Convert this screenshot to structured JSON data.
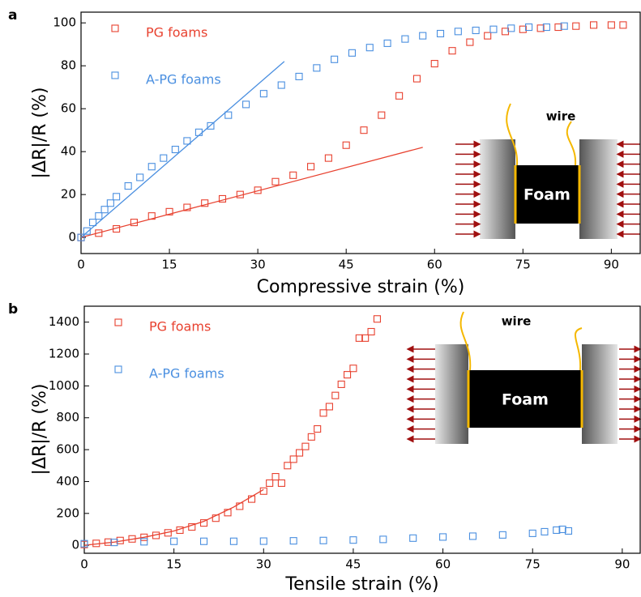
{
  "chart_data": [
    {
      "type": "scatter",
      "panel_label": "a",
      "xlabel": "Compressive strain (%)",
      "ylabel": "|ΔR|/R (%)",
      "xlim": [
        0,
        94.9
      ],
      "ylim": [
        -7.5,
        105
      ],
      "xticks": [
        0,
        15,
        30,
        45,
        60,
        75,
        90
      ],
      "yticks": [
        0,
        20,
        40,
        60,
        80,
        100
      ],
      "series": [
        {
          "name": "PG foams",
          "color": "#e8412f",
          "x": [
            0,
            3,
            6,
            9,
            12,
            15,
            18,
            21,
            24,
            27,
            30,
            33,
            36,
            39,
            42,
            45,
            48,
            51,
            54,
            57,
            60,
            63,
            66,
            69,
            72,
            75,
            78,
            81,
            84,
            87,
            90,
            92
          ],
          "values": [
            0,
            2,
            4,
            7,
            10,
            12,
            14,
            16,
            18,
            20,
            22,
            26,
            29,
            33,
            37,
            43,
            50,
            57,
            66,
            74,
            81,
            87,
            91,
            94,
            96,
            97,
            97.5,
            98,
            98.5,
            99,
            99,
            99
          ]
        },
        {
          "name": "A-PG foams",
          "color": "#4a8fe0",
          "x": [
            0,
            1,
            2,
            3,
            4,
            5,
            6,
            8,
            10,
            12,
            14,
            16,
            18,
            20,
            22,
            25,
            28,
            31,
            34,
            37,
            40,
            43,
            46,
            49,
            52,
            55,
            58,
            61,
            64,
            67,
            70,
            73,
            76,
            79,
            82
          ],
          "values": [
            0,
            3,
            7,
            10,
            13,
            16,
            19,
            24,
            28,
            33,
            37,
            41,
            45,
            49,
            52,
            57,
            62,
            67,
            71,
            75,
            79,
            83,
            86,
            88.5,
            90.5,
            92.5,
            94,
            95,
            96,
            96.5,
            97,
            97.5,
            98,
            98,
            98.5
          ]
        }
      ],
      "fit_lines": [
        {
          "color": "#e8412f",
          "x": [
            0,
            58
          ],
          "values": [
            0,
            42
          ]
        },
        {
          "color": "#4a8fe0",
          "x": [
            0,
            34.5
          ],
          "values": [
            0,
            82
          ]
        }
      ],
      "inset": {
        "wire": "wire",
        "foam": "Foam"
      }
    },
    {
      "type": "scatter",
      "panel_label": "b",
      "xlabel": "Tensile strain (%)",
      "ylabel": "|ΔR|/R (%)",
      "xlim": [
        0,
        93
      ],
      "ylim": [
        -50,
        1500
      ],
      "xticks": [
        0,
        15,
        30,
        45,
        60,
        75,
        90
      ],
      "yticks": [
        0,
        200,
        400,
        600,
        800,
        1000,
        1200,
        1400
      ],
      "series": [
        {
          "name": "PG foams",
          "color": "#e8412f",
          "x": [
            0,
            2,
            4,
            6,
            8,
            10,
            12,
            14,
            16,
            18,
            20,
            22,
            24,
            26,
            28,
            30,
            31,
            32,
            33,
            34,
            35,
            36,
            37,
            38,
            39,
            40,
            41,
            42,
            43,
            44,
            45,
            46,
            47,
            48,
            49
          ],
          "values": [
            5,
            12,
            20,
            30,
            40,
            50,
            62,
            78,
            95,
            115,
            140,
            170,
            205,
            245,
            290,
            340,
            390,
            430,
            390,
            500,
            540,
            580,
            620,
            680,
            730,
            830,
            870,
            940,
            1010,
            1070,
            1110,
            1300,
            1300,
            1340,
            1420
          ]
        },
        {
          "name": "A-PG foams",
          "color": "#4a8fe0",
          "x": [
            0,
            5,
            10,
            15,
            20,
            25,
            30,
            35,
            40,
            45,
            50,
            55,
            60,
            65,
            70,
            75,
            77,
            79,
            80,
            81
          ],
          "values": [
            10,
            18,
            22,
            25,
            25,
            25,
            26,
            28,
            30,
            33,
            37,
            45,
            52,
            57,
            65,
            75,
            85,
            95,
            100,
            90
          ]
        }
      ],
      "fit_lines": [
        {
          "color": "#e8412f",
          "x": [
            0,
            5,
            10,
            15,
            20,
            25,
            30
          ],
          "values": [
            0,
            20,
            50,
            90,
            150,
            240,
            350
          ]
        }
      ],
      "inset": {
        "wire": "wire",
        "foam": "Foam"
      }
    }
  ]
}
